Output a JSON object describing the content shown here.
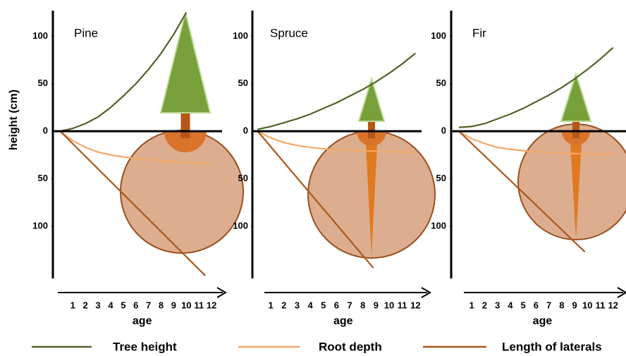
{
  "chart_data": [
    {
      "type": "line",
      "title": "Pine",
      "ylabel": "height (cm)",
      "xlabel": "age",
      "xlim": [
        -0.3,
        13
      ],
      "ylim": [
        -155,
        127
      ],
      "xticks": [
        1,
        2,
        3,
        4,
        5,
        6,
        7,
        8,
        9,
        10,
        11,
        12
      ],
      "yticks": [
        100,
        50,
        0,
        {
          "value": -50,
          "label": "50"
        },
        {
          "value": -100,
          "label": "100"
        }
      ],
      "series": [
        {
          "name": "Tree height",
          "color": "#4f6228",
          "x": [
            0,
            1,
            2,
            3,
            4,
            5,
            6,
            7,
            8,
            9,
            10
          ],
          "values": [
            0,
            3,
            8,
            15,
            25,
            37,
            50,
            65,
            82,
            102,
            125
          ]
        },
        {
          "name": "Root depth",
          "color": "#f2a867",
          "x": [
            0,
            1,
            2,
            3,
            4,
            5,
            6,
            7,
            8,
            9,
            10,
            11,
            12
          ],
          "values": [
            0,
            -10,
            -17,
            -22,
            -25,
            -27,
            -29,
            -30,
            -31,
            -32,
            -33,
            -33.5,
            -34
          ]
        },
        {
          "name": "Length of laterals",
          "color": "#a9581e",
          "x": [
            0,
            11.5
          ],
          "values": [
            0,
            -152
          ]
        }
      ]
    },
    {
      "type": "line",
      "title": "Spruce",
      "xlabel": "age",
      "xlim": [
        -0.4,
        13
      ],
      "ylim": [
        -155,
        127
      ],
      "xticks": [
        1,
        2,
        3,
        4,
        5,
        6,
        7,
        8,
        9,
        10,
        11,
        12
      ],
      "yticks": [
        100,
        50,
        0,
        {
          "value": -50,
          "label": "50"
        },
        {
          "value": -100,
          "label": "100"
        }
      ],
      "series": [
        {
          "color": "#4f6228",
          "x": [
            0,
            1,
            2,
            3,
            4,
            5,
            6,
            7,
            8,
            9,
            10,
            11,
            12
          ],
          "values": [
            2,
            5,
            9,
            13,
            18,
            24,
            30,
            37,
            44,
            52,
            61,
            71,
            82
          ]
        },
        {
          "color": "#f2a867",
          "x": [
            0,
            1,
            2,
            3,
            4,
            5,
            6,
            7,
            8,
            9,
            10,
            11,
            12
          ],
          "values": [
            0,
            -7,
            -12,
            -15,
            -17,
            -18.5,
            -19.5,
            -20,
            -20.5,
            -21,
            -21.5,
            -22,
            -22
          ]
        },
        {
          "color": "#a9581e",
          "x": [
            0,
            8.8
          ],
          "values": [
            0,
            -144
          ]
        }
      ]
    },
    {
      "type": "line",
      "title": "Fir",
      "xlabel": "age",
      "xlim": [
        -0.6,
        13
      ],
      "ylim": [
        -155,
        127
      ],
      "xticks": [
        1,
        2,
        3,
        4,
        5,
        6,
        7,
        8,
        9,
        10,
        11,
        12
      ],
      "yticks": [
        100,
        50,
        0,
        {
          "value": -50,
          "label": "50"
        },
        {
          "value": -100,
          "label": "100"
        }
      ],
      "series": [
        {
          "color": "#4f6228",
          "x": [
            0,
            1,
            2,
            3,
            4,
            5,
            6,
            7,
            8,
            9,
            10,
            11,
            12
          ],
          "values": [
            4,
            5,
            8,
            13,
            18,
            24,
            31,
            38,
            46,
            55,
            65,
            76,
            88
          ]
        },
        {
          "color": "#f2a867",
          "x": [
            0,
            1,
            2,
            3,
            4,
            5,
            6,
            7,
            8,
            9,
            10,
            11,
            12
          ],
          "values": [
            0,
            -8,
            -13,
            -17,
            -19,
            -20.5,
            -21.5,
            -22.5,
            -23,
            -23.5,
            -24,
            -24,
            -24
          ]
        },
        {
          "color": "#a9581e",
          "x": [
            0,
            9.8
          ],
          "values": [
            0,
            -127
          ]
        }
      ]
    }
  ]
}
